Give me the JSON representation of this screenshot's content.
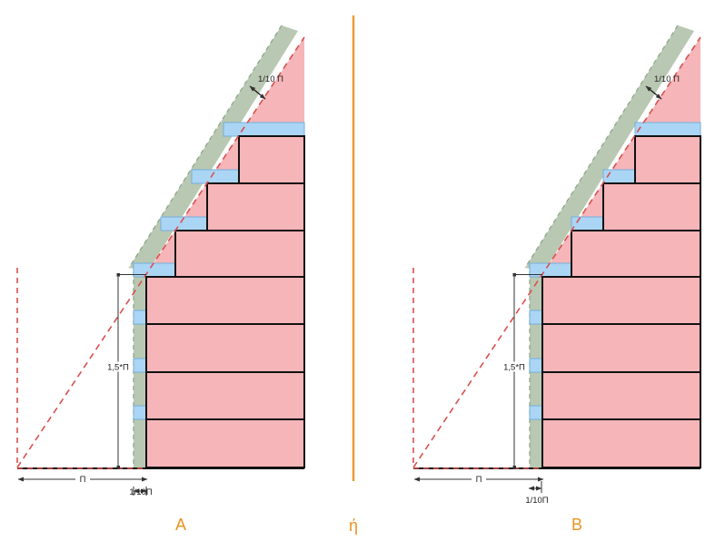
{
  "colors": {
    "pink": "#F6B5B8",
    "blue": "#ABD5F4",
    "blue_border": "#74AEDC",
    "green": "#B9C8B2",
    "green_edge": "#8FA88C",
    "red_dashed": "#D9504E",
    "orange": "#EA9C33",
    "outline_black": "#111111",
    "dimension_gray": "#333333"
  },
  "divider": {
    "label": "ή"
  },
  "figures": [
    {
      "label": "A",
      "slab_extent": "to-zone-outer-edge",
      "annotations": {
        "zone_top": "1/10 Π",
        "height": "1,5*Π",
        "width": "Π",
        "zone_bottom": "1/10Π"
      }
    },
    {
      "label": "B",
      "slab_extent": "to-step-edge",
      "annotations": {
        "zone_top": "1/10 Π",
        "height": "1,5*Π",
        "width": "Π",
        "zone_bottom": "1/10Π"
      }
    }
  ]
}
